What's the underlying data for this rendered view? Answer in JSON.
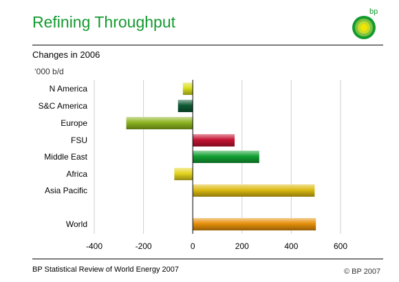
{
  "header": {
    "title": "Refining Throughput",
    "logo_text": "bp"
  },
  "footer": {
    "source": "BP Statistical Review of World Energy 2007",
    "copyright": "© BP 2007"
  },
  "colors": {
    "title": "#139a2e",
    "logo_green": "#139a2e",
    "logo_yellow": "#f2e600"
  },
  "chart_data": {
    "type": "bar",
    "orientation": "horizontal",
    "title": "Changes in 2006",
    "unit": "‘000 b/d",
    "categories": [
      "N America",
      "S&C America",
      "Europe",
      "FSU",
      "Middle East",
      "Africa",
      "Asia Pacific",
      "World"
    ],
    "values": [
      -40,
      -60,
      -270,
      170,
      270,
      -75,
      495,
      500
    ],
    "colors": [
      "#d8de1e",
      "#0e5a35",
      "#8cb41e",
      "#c51432",
      "#12a032",
      "#e4d41e",
      "#dcba12",
      "#e6900a"
    ],
    "xlim": [
      -400,
      600
    ],
    "xticks": [
      -400,
      -200,
      0,
      200,
      400,
      600
    ],
    "grid": true
  }
}
